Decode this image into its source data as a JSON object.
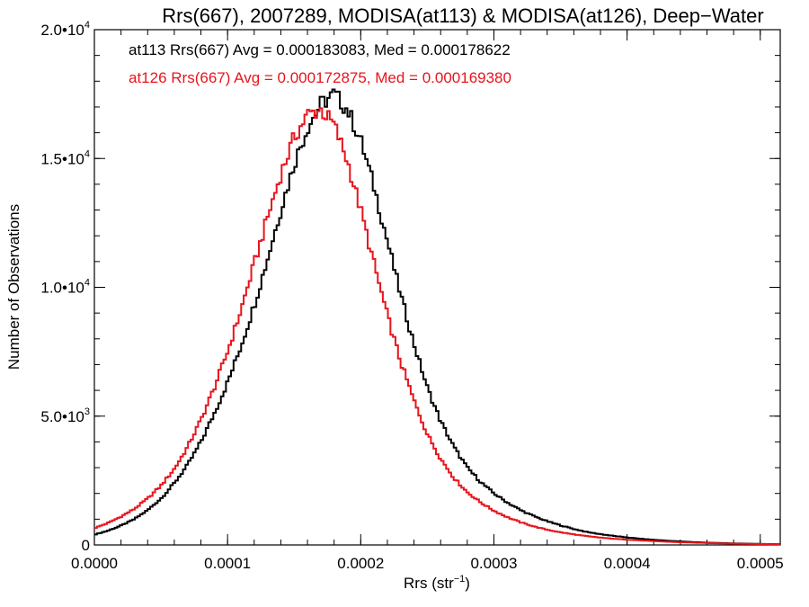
{
  "chart_data": {
    "type": "line",
    "title": "Rrs(667), 2007289, MODISA(at113) & MODISA(at126), Deep−Water",
    "xlabel_base": "Rrs (str",
    "xlabel_sup": "−1",
    "xlabel_end": ")",
    "ylabel": "Number of Observations",
    "xlim": [
      0,
      0.000515
    ],
    "ylim": [
      0,
      20000
    ],
    "xticks": [
      {
        "value": 0,
        "label": "0.0000"
      },
      {
        "value": 0.0001,
        "label": "0.0001"
      },
      {
        "value": 0.0002,
        "label": "0.0002"
      },
      {
        "value": 0.0003,
        "label": "0.0003"
      },
      {
        "value": 0.0004,
        "label": "0.0004"
      },
      {
        "value": 0.0005,
        "label": "0.0005"
      }
    ],
    "yticks": [
      {
        "value": 0,
        "mant": "0",
        "exp": ""
      },
      {
        "value": 5000,
        "mant": "5.0•10",
        "exp": "3"
      },
      {
        "value": 10000,
        "mant": "1.0•10",
        "exp": "4"
      },
      {
        "value": 15000,
        "mant": "1.5•10",
        "exp": "4"
      },
      {
        "value": 20000,
        "mant": "2.0•10",
        "exp": "4"
      }
    ],
    "series": [
      {
        "name": "at113",
        "legend": "at113 Rrs(667) Avg = 0.000183083, Med = 0.000178622",
        "color": "#000000",
        "points": [
          [
            0.0,
            400
          ],
          [
            1e-05,
            550
          ],
          [
            2e-05,
            750
          ],
          [
            3e-05,
            1000
          ],
          [
            4e-05,
            1350
          ],
          [
            5e-05,
            1800
          ],
          [
            6e-05,
            2400
          ],
          [
            7e-05,
            3100
          ],
          [
            8e-05,
            4000
          ],
          [
            9e-05,
            5100
          ],
          [
            0.0001,
            6300
          ],
          [
            0.00011,
            7700
          ],
          [
            0.00012,
            9300
          ],
          [
            0.00013,
            11100
          ],
          [
            0.00014,
            13000
          ],
          [
            0.00015,
            14800
          ],
          [
            0.00016,
            16200
          ],
          [
            0.00017,
            17100
          ],
          [
            0.00018,
            17500
          ],
          [
            0.00019,
            16900
          ],
          [
            0.0002,
            15700
          ],
          [
            0.00021,
            13900
          ],
          [
            0.00022,
            11800
          ],
          [
            0.00023,
            9700
          ],
          [
            0.00024,
            7800
          ],
          [
            0.00025,
            6100
          ],
          [
            0.00026,
            4800
          ],
          [
            0.00027,
            3800
          ],
          [
            0.00028,
            3000
          ],
          [
            0.00029,
            2450
          ],
          [
            0.0003,
            2000
          ],
          [
            0.00031,
            1650
          ],
          [
            0.00032,
            1350
          ],
          [
            0.00033,
            1120
          ],
          [
            0.00034,
            920
          ],
          [
            0.00035,
            760
          ],
          [
            0.00036,
            620
          ],
          [
            0.00037,
            500
          ],
          [
            0.00038,
            420
          ],
          [
            0.00039,
            350
          ],
          [
            0.0004,
            290
          ],
          [
            0.00041,
            240
          ],
          [
            0.00042,
            200
          ],
          [
            0.00043,
            165
          ],
          [
            0.00044,
            135
          ],
          [
            0.00045,
            110
          ],
          [
            0.00046,
            90
          ],
          [
            0.00047,
            75
          ],
          [
            0.00048,
            60
          ],
          [
            0.00049,
            50
          ],
          [
            0.0005,
            40
          ],
          [
            0.000515,
            30
          ]
        ]
      },
      {
        "name": "at126",
        "legend": "at126 Rrs(667) Avg = 0.000172875, Med = 0.000169380",
        "color": "#e8141c",
        "points": [
          [
            0.0,
            650
          ],
          [
            1e-05,
            850
          ],
          [
            2e-05,
            1100
          ],
          [
            3e-05,
            1400
          ],
          [
            4e-05,
            1800
          ],
          [
            5e-05,
            2300
          ],
          [
            6e-05,
            2950
          ],
          [
            7e-05,
            3800
          ],
          [
            8e-05,
            4850
          ],
          [
            9e-05,
            6100
          ],
          [
            0.0001,
            7500
          ],
          [
            0.00011,
            9100
          ],
          [
            0.00012,
            10900
          ],
          [
            0.00013,
            12700
          ],
          [
            0.00014,
            14400
          ],
          [
            0.00015,
            15800
          ],
          [
            0.00016,
            16700
          ],
          [
            0.00017,
            16900
          ],
          [
            0.00018,
            16300
          ],
          [
            0.00019,
            14900
          ],
          [
            0.0002,
            13000
          ],
          [
            0.00021,
            10900
          ],
          [
            0.00022,
            8900
          ],
          [
            0.00023,
            7100
          ],
          [
            0.00024,
            5600
          ],
          [
            0.00025,
            4300
          ],
          [
            0.00026,
            3350
          ],
          [
            0.00027,
            2600
          ],
          [
            0.00028,
            2050
          ],
          [
            0.00029,
            1650
          ],
          [
            0.0003,
            1330
          ],
          [
            0.00031,
            1080
          ],
          [
            0.00032,
            880
          ],
          [
            0.00033,
            720
          ],
          [
            0.00034,
            590
          ],
          [
            0.00035,
            490
          ],
          [
            0.00036,
            410
          ],
          [
            0.00037,
            340
          ],
          [
            0.00038,
            285
          ],
          [
            0.00039,
            240
          ],
          [
            0.0004,
            205
          ],
          [
            0.00041,
            175
          ],
          [
            0.00042,
            150
          ],
          [
            0.00043,
            125
          ],
          [
            0.00044,
            105
          ],
          [
            0.00045,
            90
          ],
          [
            0.00046,
            75
          ],
          [
            0.00047,
            63
          ],
          [
            0.00048,
            52
          ],
          [
            0.00049,
            43
          ],
          [
            0.0005,
            35
          ],
          [
            0.000515,
            28
          ]
        ]
      }
    ],
    "legend_position": "top-left",
    "grid": false
  }
}
